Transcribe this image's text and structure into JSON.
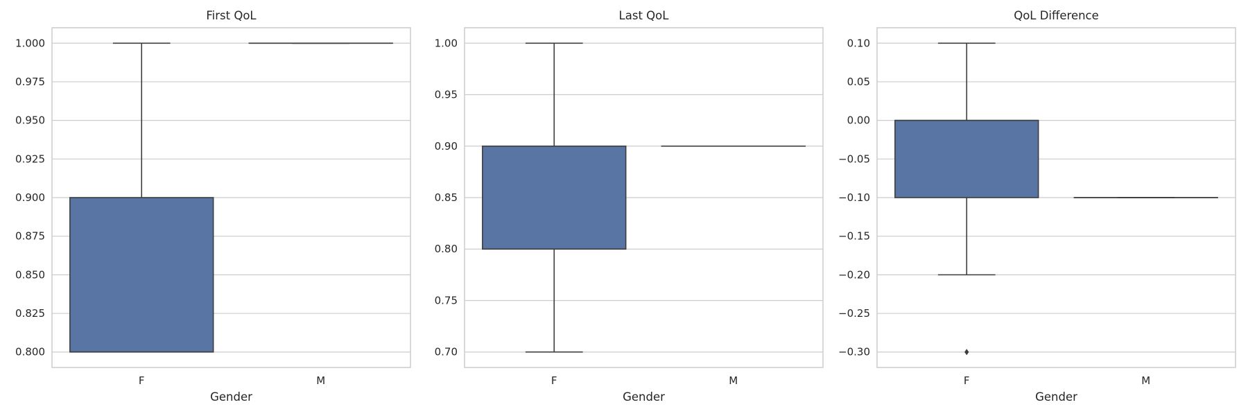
{
  "colors": {
    "box_fill": "#5875a4",
    "line": "#3d3d3d",
    "grid": "#cccccc",
    "text": "#262626"
  },
  "chart_data": [
    {
      "type": "box",
      "title": "First QoL",
      "xlabel": "Gender",
      "ylabel": "",
      "categories": [
        "F",
        "M"
      ],
      "ylim": [
        0.79,
        1.01
      ],
      "yticks": [
        0.8,
        0.825,
        0.85,
        0.875,
        0.9,
        0.925,
        0.95,
        0.975,
        1.0
      ],
      "ytick_labels": [
        "0.800",
        "0.825",
        "0.850",
        "0.875",
        "0.900",
        "0.925",
        "0.950",
        "0.975",
        "1.000"
      ],
      "grid": true,
      "boxes": [
        {
          "category": "F",
          "whisker_low": 0.8,
          "q1": 0.8,
          "median": 0.8,
          "q3": 0.9,
          "whisker_high": 1.0,
          "outliers": []
        },
        {
          "category": "M",
          "whisker_low": 1.0,
          "q1": 1.0,
          "median": 1.0,
          "q3": 1.0,
          "whisker_high": 1.0,
          "outliers": []
        }
      ]
    },
    {
      "type": "box",
      "title": "Last QoL",
      "xlabel": "Gender",
      "ylabel": "",
      "categories": [
        "F",
        "M"
      ],
      "ylim": [
        0.685,
        1.015
      ],
      "yticks": [
        0.7,
        0.75,
        0.8,
        0.85,
        0.9,
        0.95,
        1.0
      ],
      "ytick_labels": [
        "0.70",
        "0.75",
        "0.80",
        "0.85",
        "0.90",
        "0.95",
        "1.00"
      ],
      "grid": true,
      "boxes": [
        {
          "category": "F",
          "whisker_low": 0.7,
          "q1": 0.8,
          "median": 0.9,
          "q3": 0.9,
          "whisker_high": 1.0,
          "outliers": []
        },
        {
          "category": "M",
          "whisker_low": 0.9,
          "q1": 0.9,
          "median": 0.9,
          "q3": 0.9,
          "whisker_high": 0.9,
          "outliers": []
        }
      ]
    },
    {
      "type": "box",
      "title": "QoL Difference",
      "xlabel": "Gender",
      "ylabel": "",
      "categories": [
        "F",
        "M"
      ],
      "ylim": [
        -0.32,
        0.12
      ],
      "yticks": [
        0.1,
        0.05,
        0.0,
        -0.05,
        -0.1,
        -0.15,
        -0.2,
        -0.25,
        -0.3
      ],
      "ytick_labels": [
        "0.10",
        "0.05",
        "0.00",
        "−0.05",
        "−0.10",
        "−0.15",
        "−0.20",
        "−0.25",
        "−0.30"
      ],
      "grid": true,
      "boxes": [
        {
          "category": "F",
          "whisker_low": -0.2,
          "q1": -0.1,
          "median": 0.0,
          "q3": 0.0,
          "whisker_high": 0.1,
          "outliers": [
            -0.3
          ]
        },
        {
          "category": "M",
          "whisker_low": -0.1,
          "q1": -0.1,
          "median": -0.1,
          "q3": -0.1,
          "whisker_high": -0.1,
          "outliers": []
        }
      ]
    }
  ]
}
